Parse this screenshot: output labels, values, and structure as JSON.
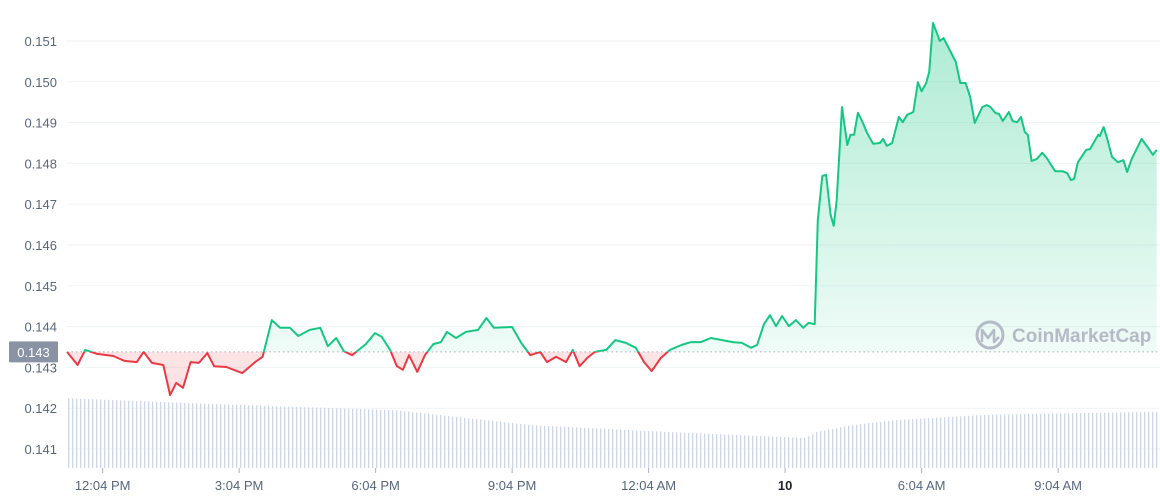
{
  "chart_data": {
    "type": "line",
    "title": "",
    "xlabel": "",
    "ylabel": "",
    "ylim": [
      0.1405,
      0.1517
    ],
    "grid": true,
    "y_ticks": [
      "0.151",
      "0.150",
      "0.149",
      "0.148",
      "0.147",
      "0.146",
      "0.145",
      "0.144",
      "0.143",
      "0.142",
      "0.141"
    ],
    "y_tick_values": [
      0.151,
      0.15,
      0.149,
      0.148,
      0.147,
      0.146,
      0.145,
      0.144,
      0.143,
      0.142,
      0.141
    ],
    "x_ticks": [
      {
        "label": "12:04 PM",
        "time": "12:04",
        "bold": false
      },
      {
        "label": "3:04 PM",
        "time": "15:04",
        "bold": false
      },
      {
        "label": "6:04 PM",
        "time": "18:04",
        "bold": false
      },
      {
        "label": "9:04 PM",
        "time": "21:04",
        "bold": false
      },
      {
        "label": "12:04 AM",
        "time": "00:04",
        "bold": false
      },
      {
        "label": "10",
        "time": "03:04",
        "bold": true
      },
      {
        "label": "6:04 AM",
        "time": "06:04",
        "bold": false
      },
      {
        "label": "9:04 AM",
        "time": "09:04",
        "bold": false
      }
    ],
    "baseline": {
      "value": 0.14338,
      "label": "0.143"
    },
    "colors": {
      "up": "#16c784",
      "down": "#ea3943",
      "volume": "#cfd6e4",
      "grid": "#eff2f5"
    },
    "watermark": "CoinMarketCap",
    "series": [
      {
        "points": [
          [
            "11:17",
            0.14338
          ],
          [
            "11:31",
            0.14306
          ],
          [
            "11:41",
            0.14343
          ],
          [
            "11:57",
            0.14333
          ],
          [
            "12:18",
            0.14328
          ],
          [
            "12:33",
            0.14316
          ],
          [
            "12:49",
            0.14313
          ],
          [
            "12:58",
            0.14338
          ],
          [
            "13:09",
            0.14311
          ],
          [
            "13:24",
            0.14306
          ],
          [
            "13:33",
            0.14232
          ],
          [
            "13:41",
            0.14262
          ],
          [
            "13:50",
            0.1425
          ],
          [
            "14:00",
            0.14313
          ],
          [
            "14:11",
            0.14311
          ],
          [
            "14:22",
            0.14335
          ],
          [
            "14:31",
            0.14303
          ],
          [
            "14:47",
            0.14301
          ],
          [
            "15:08",
            0.14286
          ],
          [
            "15:25",
            0.14313
          ],
          [
            "15:35",
            0.14326
          ],
          [
            "15:47",
            0.14416
          ],
          [
            "15:58",
            0.14397
          ],
          [
            "16:11",
            0.14397
          ],
          [
            "16:22",
            0.14377
          ],
          [
            "16:37",
            0.14392
          ],
          [
            "16:51",
            0.14397
          ],
          [
            "17:01",
            0.14352
          ],
          [
            "17:12",
            0.14372
          ],
          [
            "17:22",
            0.1434
          ],
          [
            "17:33",
            0.1433
          ],
          [
            "17:51",
            0.14357
          ],
          [
            "18:03",
            0.14384
          ],
          [
            "18:12",
            0.14375
          ],
          [
            "18:23",
            0.14343
          ],
          [
            "18:32",
            0.14303
          ],
          [
            "18:40",
            0.14294
          ],
          [
            "18:48",
            0.1433
          ],
          [
            "18:59",
            0.14289
          ],
          [
            "19:09",
            0.1433
          ],
          [
            "19:20",
            0.14357
          ],
          [
            "19:30",
            0.14362
          ],
          [
            "19:38",
            0.14387
          ],
          [
            "19:50",
            0.14372
          ],
          [
            "20:03",
            0.14387
          ],
          [
            "20:19",
            0.14392
          ],
          [
            "20:30",
            0.14421
          ],
          [
            "20:40",
            0.14397
          ],
          [
            "21:04",
            0.14399
          ],
          [
            "21:16",
            0.1436
          ],
          [
            "21:28",
            0.1433
          ],
          [
            "21:41",
            0.14338
          ],
          [
            "21:50",
            0.14313
          ],
          [
            "22:02",
            0.14326
          ],
          [
            "22:15",
            0.14313
          ],
          [
            "22:24",
            0.14343
          ],
          [
            "22:33",
            0.14303
          ],
          [
            "22:43",
            0.14323
          ],
          [
            "22:53",
            0.14338
          ],
          [
            "23:08",
            0.14343
          ],
          [
            "23:20",
            0.14367
          ],
          [
            "23:34",
            0.1436
          ],
          [
            "23:47",
            0.14348
          ],
          [
            "23:58",
            0.14313
          ],
          [
            "00:08",
            0.14291
          ],
          [
            "00:20",
            0.14323
          ],
          [
            "00:32",
            0.14343
          ],
          [
            "00:47",
            0.14355
          ],
          [
            "01:00",
            0.14362
          ],
          [
            "01:13",
            0.14362
          ],
          [
            "01:26",
            0.14372
          ],
          [
            "01:41",
            0.14367
          ],
          [
            "01:55",
            0.14362
          ],
          [
            "02:07",
            0.1436
          ],
          [
            "02:19",
            0.14348
          ],
          [
            "02:27",
            0.14355
          ],
          [
            "02:36",
            0.14406
          ],
          [
            "02:44",
            0.14428
          ],
          [
            "02:52",
            0.14401
          ],
          [
            "03:00",
            0.14426
          ],
          [
            "03:09",
            0.14401
          ],
          [
            "03:18",
            0.14416
          ],
          [
            "03:28",
            0.14397
          ],
          [
            "03:35",
            0.14409
          ],
          [
            "03:43",
            0.14406
          ],
          [
            "03:47",
            0.14661
          ],
          [
            "03:53",
            0.14769
          ],
          [
            "03:58",
            0.14772
          ],
          [
            "04:04",
            0.14674
          ],
          [
            "04:08",
            0.14647
          ],
          [
            "04:12",
            0.1471
          ],
          [
            "04:19",
            0.14938
          ],
          [
            "04:26",
            0.14845
          ],
          [
            "04:30",
            0.1487
          ],
          [
            "04:35",
            0.1487
          ],
          [
            "04:40",
            0.14924
          ],
          [
            "04:45",
            0.14906
          ],
          [
            "04:52",
            0.14875
          ],
          [
            "05:00",
            0.14848
          ],
          [
            "05:09",
            0.1485
          ],
          [
            "05:13",
            0.1486
          ],
          [
            "05:18",
            0.14843
          ],
          [
            "05:25",
            0.1485
          ],
          [
            "05:34",
            0.14914
          ],
          [
            "05:39",
            0.14901
          ],
          [
            "05:45",
            0.14919
          ],
          [
            "05:53",
            0.14926
          ],
          [
            "05:59",
            0.14999
          ],
          [
            "06:04",
            0.14977
          ],
          [
            "06:10",
            0.14997
          ],
          [
            "06:14",
            0.15024
          ],
          [
            "06:19",
            0.15144
          ],
          [
            "06:24",
            0.1512
          ],
          [
            "06:28",
            0.151
          ],
          [
            "06:33",
            0.15107
          ],
          [
            "06:41",
            0.15078
          ],
          [
            "06:49",
            0.15049
          ],
          [
            "06:55",
            0.14997
          ],
          [
            "07:02",
            0.14997
          ],
          [
            "07:08",
            0.14963
          ],
          [
            "07:14",
            0.14899
          ],
          [
            "07:24",
            0.14938
          ],
          [
            "07:30",
            0.14943
          ],
          [
            "07:35",
            0.14938
          ],
          [
            "07:41",
            0.14924
          ],
          [
            "07:46",
            0.14921
          ],
          [
            "07:51",
            0.14904
          ],
          [
            "07:59",
            0.14926
          ],
          [
            "08:04",
            0.14904
          ],
          [
            "08:10",
            0.14901
          ],
          [
            "08:15",
            0.14914
          ],
          [
            "08:20",
            0.14877
          ],
          [
            "08:24",
            0.1487
          ],
          [
            "08:29",
            0.14806
          ],
          [
            "08:36",
            0.14811
          ],
          [
            "08:43",
            0.14826
          ],
          [
            "08:49",
            0.14813
          ],
          [
            "09:00",
            0.14781
          ],
          [
            "09:10",
            0.14781
          ],
          [
            "09:16",
            0.14776
          ],
          [
            "09:21",
            0.14759
          ],
          [
            "09:25",
            0.14762
          ],
          [
            "09:30",
            0.14803
          ],
          [
            "09:41",
            0.14833
          ],
          [
            "09:46",
            0.14835
          ],
          [
            "09:57",
            0.1487
          ],
          [
            "09:59",
            0.14867
          ],
          [
            "10:04",
            0.14889
          ],
          [
            "10:08",
            0.14865
          ],
          [
            "10:15",
            0.14816
          ],
          [
            "10:23",
            0.14803
          ],
          [
            "10:30",
            0.14808
          ],
          [
            "10:35",
            0.14779
          ],
          [
            "10:41",
            0.14811
          ],
          [
            "10:54",
            0.1486
          ],
          [
            "11:02",
            0.1484
          ],
          [
            "11:09",
            0.14821
          ],
          [
            "11:14",
            0.14833
          ]
        ]
      }
    ],
    "volume_relative": [
      [
        "11:17",
        93
      ],
      [
        "15:04",
        84
      ],
      [
        "18:30",
        77
      ],
      [
        "21:30",
        57
      ],
      [
        "00:30",
        48
      ],
      [
        "03:30",
        40
      ],
      [
        "03:45",
        48
      ],
      [
        "04:30",
        57
      ],
      [
        "05:30",
        64
      ],
      [
        "07:30",
        71
      ],
      [
        "11:14",
        75
      ]
    ]
  }
}
